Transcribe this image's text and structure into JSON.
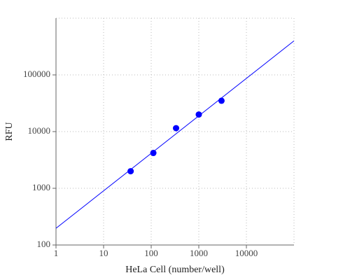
{
  "chart_data": {
    "type": "scatter",
    "x_label": "HeLa Cell (number/well)",
    "y_label": "RFU",
    "xlog": true,
    "ylog": true,
    "grid": true,
    "xlim": [
      1,
      100000
    ],
    "ylim": [
      100,
      1000000
    ],
    "xticks": [
      1,
      10,
      100,
      1000,
      10000
    ],
    "yticks": [
      100,
      1000,
      10000,
      100000
    ],
    "series": [
      {
        "mode": "markers",
        "color": "#0000ff",
        "x": [
          37,
          111,
          333,
          1000,
          3000
        ],
        "values": [
          2000,
          4200,
          11500,
          20000,
          35000
        ]
      },
      {
        "mode": "line",
        "color": "#0000ff",
        "x": [
          1,
          100000
        ],
        "values": [
          197,
          398000
        ]
      }
    ]
  }
}
